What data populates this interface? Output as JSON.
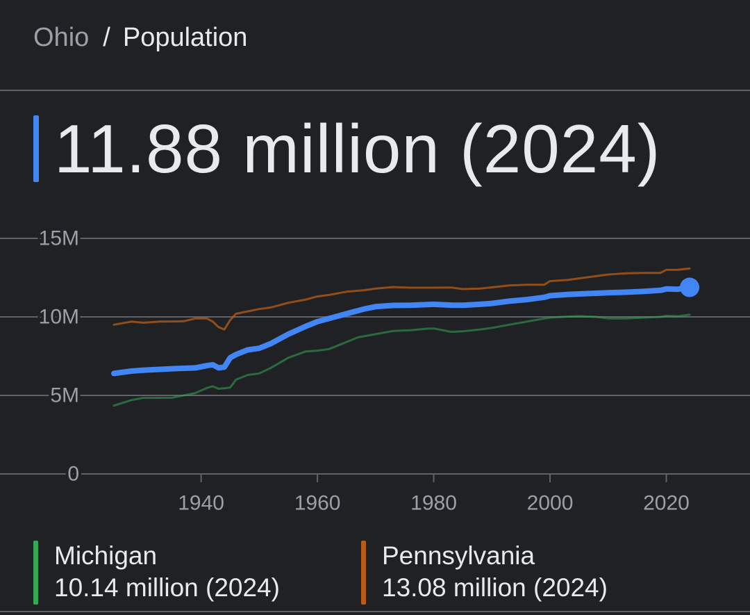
{
  "breadcrumb": {
    "root": "Ohio",
    "separator": "/",
    "current": "Population"
  },
  "headline": {
    "value": "11.88 million (2024)",
    "color": "#4285f4"
  },
  "legend": [
    {
      "name": "Michigan",
      "value": "10.14 million (2024)",
      "color": "#34a853"
    },
    {
      "name": "Pennsylvania",
      "value": "13.08 million (2024)",
      "color": "#b85c15"
    }
  ],
  "chart_data": {
    "type": "line",
    "title": "Population",
    "xlabel": "",
    "ylabel": "",
    "xlim": [
      1918,
      2032
    ],
    "ylim": [
      0,
      15000000
    ],
    "y_ticks": [
      {
        "value": 0,
        "label": "0"
      },
      {
        "value": 5000000,
        "label": "5M"
      },
      {
        "value": 10000000,
        "label": "10M"
      },
      {
        "value": 15000000,
        "label": "15M"
      }
    ],
    "x_ticks": [
      {
        "value": 1940,
        "label": "1940"
      },
      {
        "value": 1960,
        "label": "1960"
      },
      {
        "value": 1980,
        "label": "1980"
      },
      {
        "value": 2000,
        "label": "2000"
      },
      {
        "value": 2020,
        "label": "2020"
      }
    ],
    "grid": true,
    "series": [
      {
        "name": "Michigan",
        "color": "#34a853",
        "opacity": 0.55,
        "width": 3,
        "points": [
          [
            1925,
            4.35
          ],
          [
            1928,
            4.7
          ],
          [
            1930,
            4.84
          ],
          [
            1935,
            4.85
          ],
          [
            1939,
            5.15
          ],
          [
            1941,
            5.48
          ],
          [
            1942,
            5.58
          ],
          [
            1943,
            5.42
          ],
          [
            1945,
            5.5
          ],
          [
            1946,
            6.0
          ],
          [
            1948,
            6.3
          ],
          [
            1950,
            6.4
          ],
          [
            1952,
            6.75
          ],
          [
            1955,
            7.4
          ],
          [
            1958,
            7.8
          ],
          [
            1960,
            7.85
          ],
          [
            1962,
            7.95
          ],
          [
            1965,
            8.4
          ],
          [
            1967,
            8.7
          ],
          [
            1970,
            8.9
          ],
          [
            1973,
            9.1
          ],
          [
            1976,
            9.15
          ],
          [
            1979,
            9.25
          ],
          [
            1980,
            9.26
          ],
          [
            1983,
            9.05
          ],
          [
            1985,
            9.08
          ],
          [
            1988,
            9.2
          ],
          [
            1990,
            9.3
          ],
          [
            1993,
            9.5
          ],
          [
            1996,
            9.7
          ],
          [
            1999,
            9.9
          ],
          [
            2000,
            9.95
          ],
          [
            2002,
            10.0
          ],
          [
            2005,
            10.05
          ],
          [
            2008,
            10.0
          ],
          [
            2010,
            9.9
          ],
          [
            2013,
            9.9
          ],
          [
            2016,
            9.95
          ],
          [
            2019,
            10.0
          ],
          [
            2020,
            10.07
          ],
          [
            2022,
            10.04
          ],
          [
            2024,
            10.14
          ]
        ]
      },
      {
        "name": "Pennsylvania",
        "color": "#b85c15",
        "opacity": 0.75,
        "width": 3,
        "points": [
          [
            1925,
            9.5
          ],
          [
            1928,
            9.7
          ],
          [
            1930,
            9.63
          ],
          [
            1933,
            9.7
          ],
          [
            1937,
            9.72
          ],
          [
            1939,
            9.9
          ],
          [
            1941,
            9.9
          ],
          [
            1942,
            9.7
          ],
          [
            1943,
            9.35
          ],
          [
            1944,
            9.2
          ],
          [
            1945,
            9.8
          ],
          [
            1946,
            10.2
          ],
          [
            1948,
            10.35
          ],
          [
            1950,
            10.5
          ],
          [
            1952,
            10.6
          ],
          [
            1955,
            10.9
          ],
          [
            1958,
            11.1
          ],
          [
            1960,
            11.3
          ],
          [
            1962,
            11.4
          ],
          [
            1965,
            11.6
          ],
          [
            1968,
            11.7
          ],
          [
            1970,
            11.8
          ],
          [
            1973,
            11.9
          ],
          [
            1976,
            11.86
          ],
          [
            1980,
            11.86
          ],
          [
            1983,
            11.87
          ],
          [
            1985,
            11.77
          ],
          [
            1988,
            11.8
          ],
          [
            1990,
            11.88
          ],
          [
            1993,
            12.0
          ],
          [
            1996,
            12.05
          ],
          [
            1999,
            12.05
          ],
          [
            2000,
            12.28
          ],
          [
            2003,
            12.35
          ],
          [
            2006,
            12.5
          ],
          [
            2009,
            12.65
          ],
          [
            2010,
            12.7
          ],
          [
            2013,
            12.77
          ],
          [
            2016,
            12.8
          ],
          [
            2019,
            12.8
          ],
          [
            2020,
            13.0
          ],
          [
            2022,
            13.0
          ],
          [
            2024,
            13.08
          ]
        ]
      },
      {
        "name": "Ohio",
        "color": "#4285f4",
        "opacity": 1,
        "width": 8,
        "points": [
          [
            1925,
            6.4
          ],
          [
            1928,
            6.55
          ],
          [
            1930,
            6.6
          ],
          [
            1935,
            6.7
          ],
          [
            1939,
            6.75
          ],
          [
            1941,
            6.9
          ],
          [
            1942,
            6.95
          ],
          [
            1943,
            6.75
          ],
          [
            1944,
            6.8
          ],
          [
            1945,
            7.4
          ],
          [
            1946,
            7.6
          ],
          [
            1948,
            7.9
          ],
          [
            1950,
            8.0
          ],
          [
            1952,
            8.3
          ],
          [
            1955,
            8.9
          ],
          [
            1958,
            9.4
          ],
          [
            1960,
            9.7
          ],
          [
            1962,
            9.9
          ],
          [
            1965,
            10.2
          ],
          [
            1968,
            10.5
          ],
          [
            1970,
            10.65
          ],
          [
            1973,
            10.73
          ],
          [
            1976,
            10.74
          ],
          [
            1980,
            10.8
          ],
          [
            1983,
            10.75
          ],
          [
            1985,
            10.74
          ],
          [
            1988,
            10.8
          ],
          [
            1990,
            10.86
          ],
          [
            1993,
            11.0
          ],
          [
            1996,
            11.1
          ],
          [
            1999,
            11.25
          ],
          [
            2000,
            11.35
          ],
          [
            2003,
            11.43
          ],
          [
            2006,
            11.48
          ],
          [
            2009,
            11.52
          ],
          [
            2010,
            11.54
          ],
          [
            2013,
            11.57
          ],
          [
            2016,
            11.62
          ],
          [
            2019,
            11.69
          ],
          [
            2020,
            11.78
          ],
          [
            2022,
            11.76
          ],
          [
            2024,
            11.88
          ]
        ]
      }
    ],
    "highlight": {
      "series": "Ohio",
      "x": 2024,
      "y": 11.88
    },
    "y_units": "millions"
  }
}
